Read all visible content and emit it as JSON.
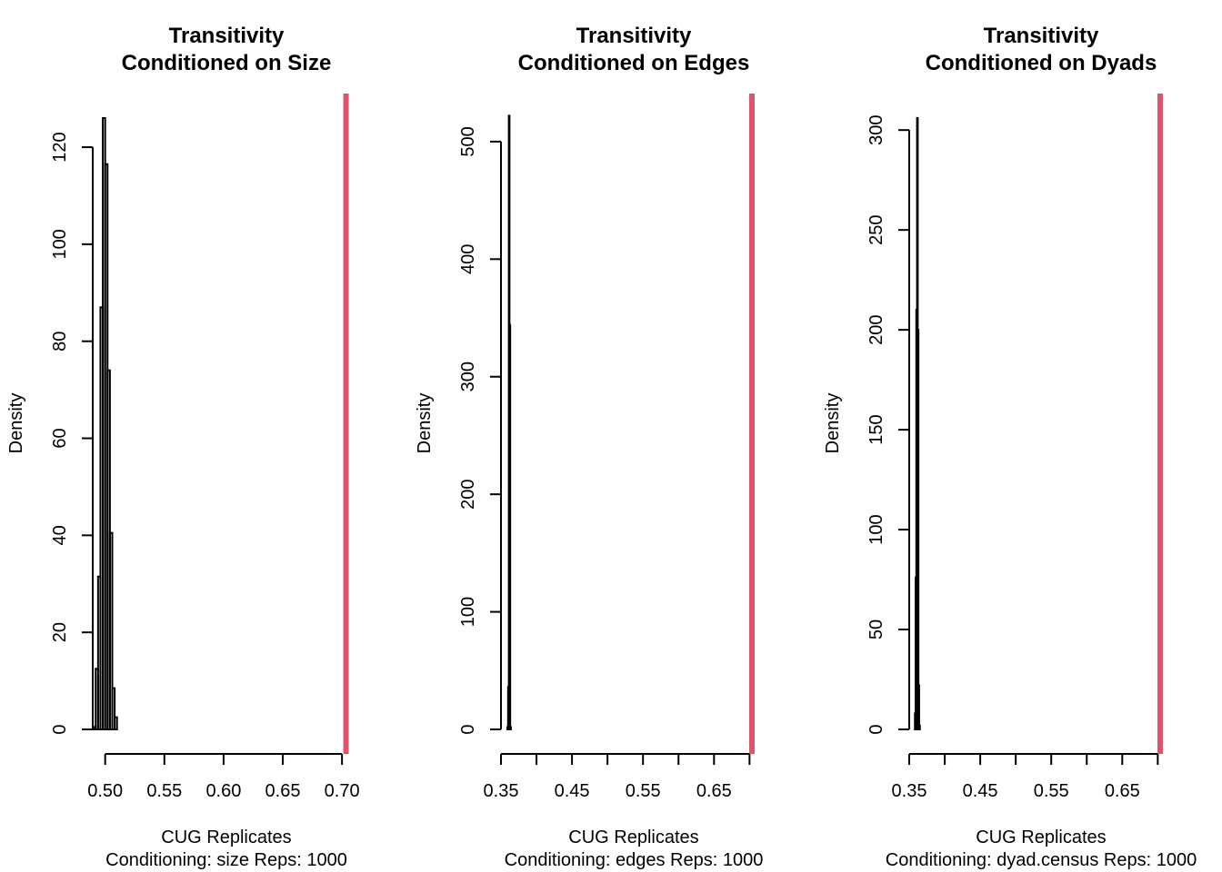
{
  "chart_data": [
    {
      "type": "bar",
      "title_line1": "Transitivity",
      "title_line2": "Conditioned on Size",
      "xlabel": "CUG Replicates",
      "sublabel": "Conditioning: size Reps: 1000",
      "ylabel": "Density",
      "xlim": [
        0.4895,
        0.7045
      ],
      "ylim": [
        0,
        126
      ],
      "xticks": [
        0.5,
        0.55,
        0.6,
        0.65,
        0.7
      ],
      "xtick_labels": [
        "0.50",
        "0.55",
        "0.60",
        "0.65",
        "0.70"
      ],
      "yticks": [
        0,
        20,
        40,
        60,
        80,
        100,
        120
      ],
      "ytick_labels": [
        "0",
        "20",
        "40",
        "60",
        "80",
        "100",
        "120"
      ],
      "bins": [
        {
          "x0": 0.49,
          "x1": 0.492,
          "density": 0.5
        },
        {
          "x0": 0.492,
          "x1": 0.494,
          "density": 12.5
        },
        {
          "x0": 0.494,
          "x1": 0.496,
          "density": 31.5
        },
        {
          "x0": 0.496,
          "x1": 0.498,
          "density": 87
        },
        {
          "x0": 0.498,
          "x1": 0.5,
          "density": 126
        },
        {
          "x0": 0.5,
          "x1": 0.502,
          "density": 116.5
        },
        {
          "x0": 0.502,
          "x1": 0.504,
          "density": 74
        },
        {
          "x0": 0.504,
          "x1": 0.506,
          "density": 40.5
        },
        {
          "x0": 0.506,
          "x1": 0.508,
          "density": 8.5
        },
        {
          "x0": 0.508,
          "x1": 0.51,
          "density": 2.5
        }
      ],
      "observed_value": 0.7034,
      "observed_color": "#DF536B"
    },
    {
      "type": "bar",
      "title_line1": "Transitivity",
      "title_line2": "Conditioned on Edges",
      "xlabel": "CUG Replicates",
      "sublabel": "Conditioning: edges Reps: 1000",
      "ylabel": "Density",
      "xlim": [
        0.35,
        0.7034
      ],
      "ylim": [
        0,
        520
      ],
      "xticks": [
        0.35,
        0.4,
        0.45,
        0.5,
        0.55,
        0.6,
        0.65,
        0.7
      ],
      "xtick_labels": [
        "0.35",
        "",
        "0.45",
        "",
        "0.55",
        "",
        "0.65",
        ""
      ],
      "yticks": [
        0,
        100,
        200,
        300,
        400,
        500
      ],
      "ytick_labels": [
        "0",
        "100",
        "200",
        "300",
        "400",
        "500"
      ],
      "bins": [
        {
          "x0": 0.359,
          "x1": 0.36,
          "density": 2
        },
        {
          "x0": 0.36,
          "x1": 0.361,
          "density": 36
        },
        {
          "x0": 0.361,
          "x1": 0.362,
          "density": 522
        },
        {
          "x0": 0.362,
          "x1": 0.363,
          "density": 344
        },
        {
          "x0": 0.363,
          "x1": 0.364,
          "density": 2
        }
      ],
      "observed_value": 0.7034,
      "observed_color": "#DF536B"
    },
    {
      "type": "bar",
      "title_line1": "Transitivity",
      "title_line2": "Conditioned on Dyads",
      "xlabel": "CUG Replicates",
      "sublabel": "Conditioning: dyad.census Reps: 1000",
      "ylabel": "Density",
      "xlim": [
        0.35,
        0.7034
      ],
      "ylim": [
        0,
        306
      ],
      "xticks": [
        0.35,
        0.4,
        0.45,
        0.5,
        0.55,
        0.6,
        0.65,
        0.7
      ],
      "xtick_labels": [
        "0.35",
        "",
        "0.45",
        "",
        "0.55",
        "",
        "0.65",
        ""
      ],
      "yticks": [
        0,
        50,
        100,
        150,
        200,
        250,
        300
      ],
      "ytick_labels": [
        "0",
        "50",
        "100",
        "150",
        "200",
        "250",
        "300"
      ],
      "bins": [
        {
          "x0": 0.358,
          "x1": 0.359,
          "density": 8
        },
        {
          "x0": 0.359,
          "x1": 0.36,
          "density": 76
        },
        {
          "x0": 0.36,
          "x1": 0.361,
          "density": 210
        },
        {
          "x0": 0.361,
          "x1": 0.362,
          "density": 306
        },
        {
          "x0": 0.362,
          "x1": 0.363,
          "density": 200
        },
        {
          "x0": 0.363,
          "x1": 0.364,
          "density": 22
        },
        {
          "x0": 0.364,
          "x1": 0.365,
          "density": 2
        }
      ],
      "observed_value": 0.7034,
      "observed_color": "#DF536B"
    }
  ]
}
